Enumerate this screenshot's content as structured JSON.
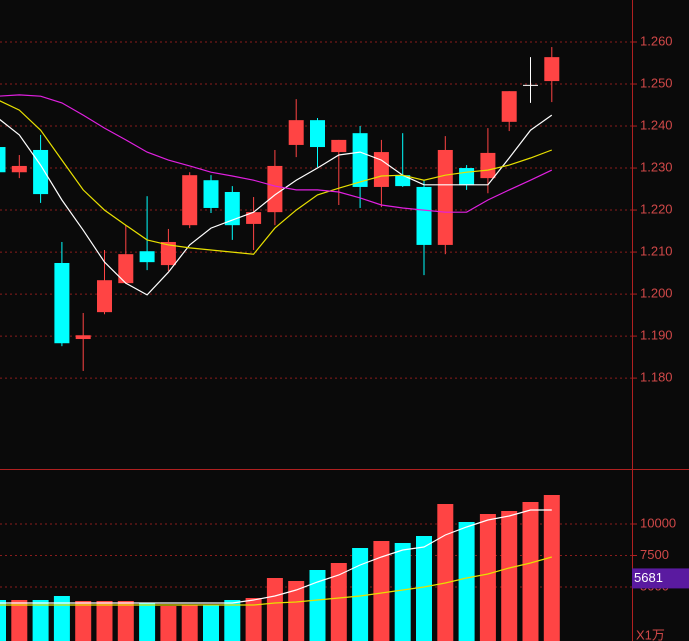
{
  "chart_data": [
    {
      "type": "candlestick",
      "colors": {
        "up": "#ff4444",
        "down": "#00ffff",
        "flat": "#ffffff"
      },
      "open": [
        1.235,
        1.229,
        1.2343,
        1.2074,
        1.1893,
        1.1957,
        1.2026,
        1.2102,
        1.2069,
        1.2164,
        1.2271,
        1.2243,
        1.2167,
        1.2195,
        1.2355,
        1.2414,
        1.2338,
        1.2383,
        1.2255,
        1.2283,
        1.2255,
        1.2117,
        1.23,
        1.2276,
        1.241,
        1.2498,
        1.2507
      ],
      "high": [
        1.236,
        1.2331,
        1.2379,
        1.2124,
        1.1955,
        1.2105,
        1.2164,
        1.2233,
        1.2155,
        1.229,
        1.2283,
        1.2257,
        1.2231,
        1.2343,
        1.2464,
        1.2419,
        1.2367,
        1.24,
        1.2367,
        1.2383,
        1.2271,
        1.2376,
        1.2307,
        1.2395,
        1.2483,
        1.2564,
        1.2588
      ],
      "low": [
        1.228,
        1.2276,
        1.2217,
        1.1876,
        1.1817,
        1.1952,
        1.2024,
        1.2057,
        1.2055,
        1.2157,
        1.2193,
        1.2129,
        1.2105,
        1.2164,
        1.2326,
        1.2302,
        1.2212,
        1.2205,
        1.2207,
        1.2255,
        1.2045,
        1.2095,
        1.2248,
        1.224,
        1.2388,
        1.2455,
        1.2457
      ],
      "close": [
        1.229,
        1.2305,
        1.2238,
        1.1883,
        1.1902,
        1.2033,
        1.2095,
        1.2076,
        1.2124,
        1.2283,
        1.2205,
        1.2164,
        1.2195,
        1.2305,
        1.2414,
        1.235,
        1.2367,
        1.2255,
        1.2338,
        1.2257,
        1.2117,
        1.2343,
        1.226,
        1.2336,
        1.2483,
        1.2498,
        1.2564
      ],
      "series": [
        {
          "color": "#ffffff",
          "values": [
            1.2419,
            1.2379,
            1.2307,
            1.2224,
            1.2152,
            1.2076,
            1.2026,
            1.1998,
            1.2052,
            1.2117,
            1.2157,
            1.2176,
            1.2195,
            1.2236,
            1.2271,
            1.23,
            1.2331,
            1.2338,
            1.2319,
            1.2283,
            1.226,
            1.226,
            1.226,
            1.226,
            1.2324,
            1.239,
            1.2426
          ]
        },
        {
          "color": "#e8e000",
          "values": [
            1.2462,
            1.2438,
            1.239,
            1.2319,
            1.2248,
            1.22,
            1.2164,
            1.2129,
            1.2117,
            1.211,
            1.2105,
            1.21,
            1.2095,
            1.2157,
            1.22,
            1.2236,
            1.2252,
            1.2267,
            1.2281,
            1.2283,
            1.2271,
            1.2283,
            1.229,
            1.2295,
            1.2307,
            1.2324,
            1.2343
          ]
        },
        {
          "color": "#e020e0",
          "values": [
            1.2471,
            1.2474,
            1.2471,
            1.2455,
            1.2426,
            1.2395,
            1.2367,
            1.2338,
            1.2319,
            1.2305,
            1.229,
            1.2281,
            1.2271,
            1.2257,
            1.2248,
            1.2248,
            1.2243,
            1.2229,
            1.2212,
            1.2205,
            1.22,
            1.2195,
            1.2195,
            1.2224,
            1.2248,
            1.2271,
            1.2295
          ]
        }
      ],
      "ylim": [
        1.1586,
        1.27
      ],
      "yticks": [
        {
          "value": 1.18,
          "label": "1.180"
        },
        {
          "value": 1.19,
          "label": "1.190"
        },
        {
          "value": 1.2,
          "label": "1.200"
        },
        {
          "value": 1.21,
          "label": "1.210"
        },
        {
          "value": 1.22,
          "label": "1.220"
        },
        {
          "value": 1.23,
          "label": "1.230"
        },
        {
          "value": 1.24,
          "label": "1.240"
        },
        {
          "value": 1.25,
          "label": "1.250"
        },
        {
          "value": 1.26,
          "label": "1.260"
        }
      ],
      "grid": true
    },
    {
      "type": "bar",
      "colors": {
        "up": "#ff4444",
        "down": "#00ffff"
      },
      "values": [
        3968,
        3968,
        3968,
        4286,
        3889,
        3889,
        3889,
        3730,
        3492,
        3571,
        3571,
        3968,
        4127,
        5714,
        5476,
        6349,
        6905,
        8095,
        8651,
        8492,
        9048,
        11587,
        10159,
        10794,
        11032,
        11746,
        12302
      ],
      "series": [
        {
          "color": "#ffffff",
          "values": [
            3730,
            3730,
            3730,
            3730,
            3730,
            3730,
            3730,
            3730,
            3730,
            3730,
            3730,
            3730,
            3968,
            4286,
            4762,
            5397,
            5952,
            6746,
            7381,
            7937,
            8175,
            9127,
            9762,
            10317,
            10635,
            11111,
            11111
          ]
        },
        {
          "color": "#e8e000",
          "values": [
            3571,
            3571,
            3571,
            3571,
            3571,
            3571,
            3571,
            3571,
            3571,
            3571,
            3571,
            3571,
            3571,
            3730,
            3810,
            3968,
            4127,
            4286,
            4524,
            4762,
            5000,
            5317,
            5714,
            6032,
            6508,
            6905,
            7381
          ]
        }
      ],
      "ylim": [
        714,
        14286
      ],
      "yticks": [
        5000,
        7500,
        10000
      ],
      "grid": true,
      "tag": 5681,
      "unit_label": "X1万"
    }
  ]
}
